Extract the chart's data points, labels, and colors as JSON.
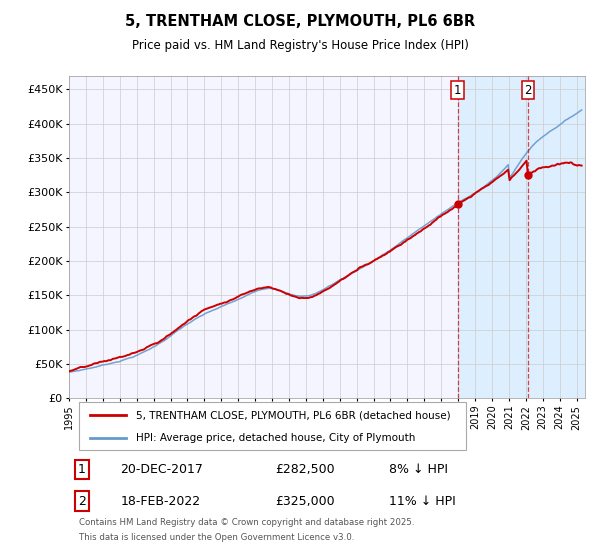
{
  "title_line1": "5, TRENTHAM CLOSE, PLYMOUTH, PL6 6BR",
  "title_line2": "Price paid vs. HM Land Registry's House Price Index (HPI)",
  "ylabel_ticks": [
    "£0",
    "£50K",
    "£100K",
    "£150K",
    "£200K",
    "£250K",
    "£300K",
    "£350K",
    "£400K",
    "£450K"
  ],
  "ytick_vals": [
    0,
    50000,
    100000,
    150000,
    200000,
    250000,
    300000,
    350000,
    400000,
    450000
  ],
  "ylim": [
    0,
    470000
  ],
  "xlim_start": 1995.0,
  "xlim_end": 2025.5,
  "sale1_date_str": "20-DEC-2017",
  "sale1_price_str": "£282,500",
  "sale1_pct_str": "8% ↓ HPI",
  "sale1_year": 2017.97,
  "sale1_price": 282500,
  "sale2_date_str": "18-FEB-2022",
  "sale2_price_str": "£325,000",
  "sale2_pct_str": "11% ↓ HPI",
  "sale2_year": 2022.12,
  "sale2_price": 325000,
  "legend_label_red": "5, TRENTHAM CLOSE, PLYMOUTH, PL6 6BR (detached house)",
  "legend_label_blue": "HPI: Average price, detached house, City of Plymouth",
  "footnote_line1": "Contains HM Land Registry data © Crown copyright and database right 2025.",
  "footnote_line2": "This data is licensed under the Open Government Licence v3.0.",
  "color_red": "#cc0000",
  "color_blue": "#6699cc",
  "color_shading": "#ddeeff",
  "color_vline1": "#cc0000",
  "color_vline2": "#cc0000",
  "background_chart": "#f5f5ff",
  "grid_color": "#cccccc"
}
